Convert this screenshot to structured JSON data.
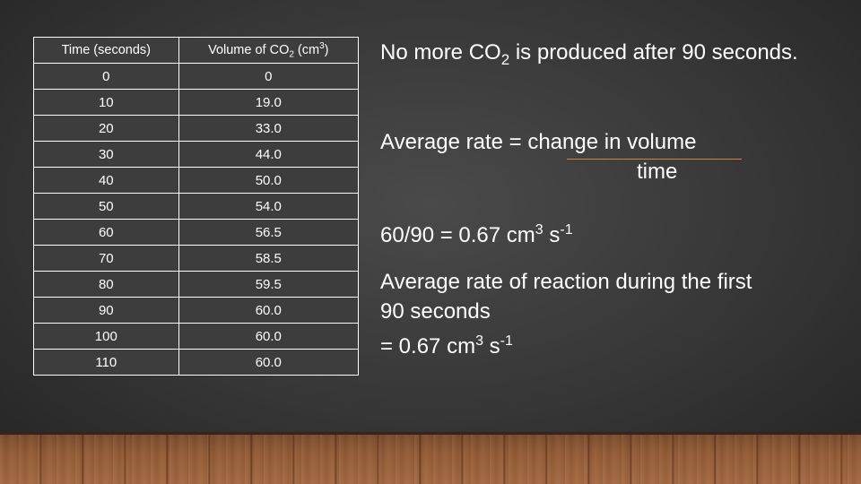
{
  "table": {
    "header": {
      "col1": "Time (seconds)",
      "col2_prefix": "Volume of CO",
      "col2_sub": "2",
      "col2_mid": " (cm",
      "col2_sup": "3",
      "col2_suffix": ")"
    },
    "rows": [
      {
        "time": "0",
        "volume": "0"
      },
      {
        "time": "10",
        "volume": "19.0"
      },
      {
        "time": "20",
        "volume": "33.0"
      },
      {
        "time": "30",
        "volume": "44.0"
      },
      {
        "time": "40",
        "volume": "50.0"
      },
      {
        "time": "50",
        "volume": "54.0"
      },
      {
        "time": "60",
        "volume": "56.5"
      },
      {
        "time": "70",
        "volume": "58.5"
      },
      {
        "time": "80",
        "volume": "59.5"
      },
      {
        "time": "90",
        "volume": "60.0"
      },
      {
        "time": "100",
        "volume": "60.0"
      },
      {
        "time": "110",
        "volume": "60.0"
      }
    ]
  },
  "notes": {
    "p1_a": "No more CO",
    "p1_sub": "2",
    "p1_b": " is produced after 90 seconds.",
    "p2_numer": "Average rate = change in volume",
    "p2_denom": "time",
    "p3_a": "60/90 = 0.67 cm",
    "p3_sup1": "3",
    "p3_b": " s",
    "p3_sup2": "-1",
    "p4_line1": "Average rate of reaction during the first",
    "p4_line2": "90 seconds",
    "p4_a": "= 0.67 cm",
    "p4_sup1": "3",
    "p4_b": " s",
    "p4_sup2": "-1"
  },
  "colors": {
    "text": "#ffffff",
    "fraction_line": "#d9822b",
    "background": "#363636",
    "floor": "#935c37"
  }
}
